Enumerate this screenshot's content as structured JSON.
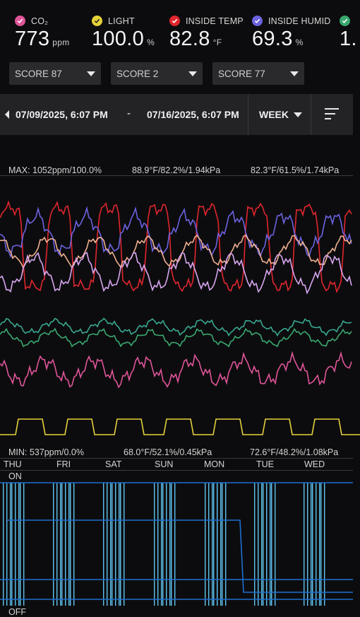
{
  "metrics": [
    {
      "name": "metric-co2",
      "label": "CO₂",
      "value": "773",
      "unit": "ppm",
      "color": "#e0559a"
    },
    {
      "name": "metric-light",
      "label": "LIGHT",
      "value": "100.0",
      "unit": "%",
      "color": "#e6d23a"
    },
    {
      "name": "metric-inside-temp",
      "label": "INSIDE TEMP",
      "value": "82.8",
      "unit": "°F",
      "color": "#e0262e"
    },
    {
      "name": "metric-inside-humid",
      "label": "INSIDE HUMID",
      "value": "69.3",
      "unit": "%",
      "color": "#6c63e0"
    },
    {
      "name": "metric-vpd",
      "label": "",
      "value": "1.",
      "unit": "",
      "color": "#3aa870"
    }
  ],
  "scores": [
    "SCORE 87",
    "SCORE 2",
    "SCORE 77"
  ],
  "range": {
    "start": "07/09/2025, 6:07 PM",
    "dash": "-",
    "end": "07/16/2025, 6:07 PM",
    "period": "WEEK"
  },
  "chart": {
    "max_label_1": "MAX: 1052ppm/100.0%",
    "max_label_2": "88.9°F/82.2%/1.94kPa",
    "max_label_3": "82.3°F/61.5%/1.74kPa",
    "min_label_1": "MIN: 537ppm/0.0%",
    "min_label_2": "68.0°F/52.1%/0.45kPa",
    "min_label_3": "72.6°F/48.2%/1.08kPa",
    "days": [
      "THU",
      "FRI",
      "SAT",
      "SUN",
      "MON",
      "TUE",
      "WED"
    ],
    "on_label": "ON",
    "off_label": "OFF"
  },
  "colors": {
    "red": "#e0262e",
    "purple": "#6c63e0",
    "peach": "#f0b090",
    "lilac": "#d9a6f0",
    "teal": "#3aa890",
    "green": "#3aa870",
    "pink": "#e0559a",
    "yellow": "#e6d23a",
    "blue_light": "#5fc3f0",
    "blue_dark": "#1e6fd0"
  }
}
